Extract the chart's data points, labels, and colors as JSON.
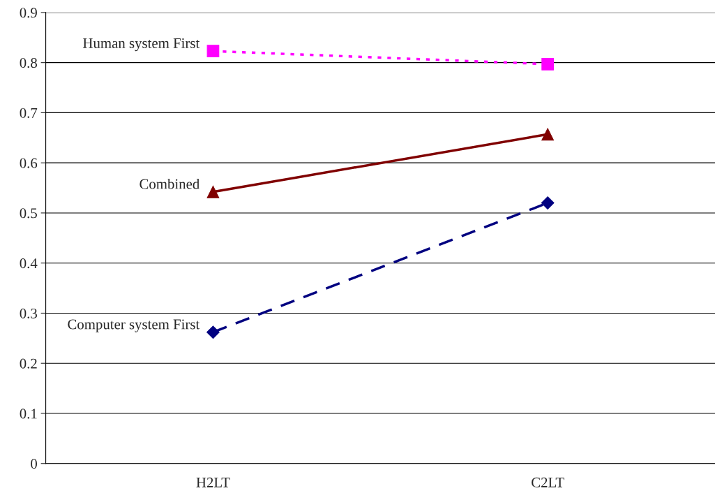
{
  "chart_data": {
    "type": "line",
    "categories": [
      "H2LT",
      "C2LT"
    ],
    "series": [
      {
        "name": "Human system First",
        "color": "#ff00ff",
        "values": [
          0.823,
          0.797
        ],
        "marker": "square",
        "line_style": "dotted"
      },
      {
        "name": "Combined",
        "color": "#800000",
        "values": [
          0.542,
          0.657
        ],
        "marker": "triangle",
        "line_style": "solid"
      },
      {
        "name": "Computer system First",
        "color": "#000080",
        "values": [
          0.262,
          0.52
        ],
        "marker": "diamond",
        "line_style": "dashed"
      }
    ],
    "ylim": [
      0,
      0.9
    ],
    "yticks": [
      0,
      0.1,
      0.2,
      0.3,
      0.4,
      0.5,
      0.6,
      0.7,
      0.8,
      0.9
    ],
    "grid": "y",
    "legend": false
  }
}
